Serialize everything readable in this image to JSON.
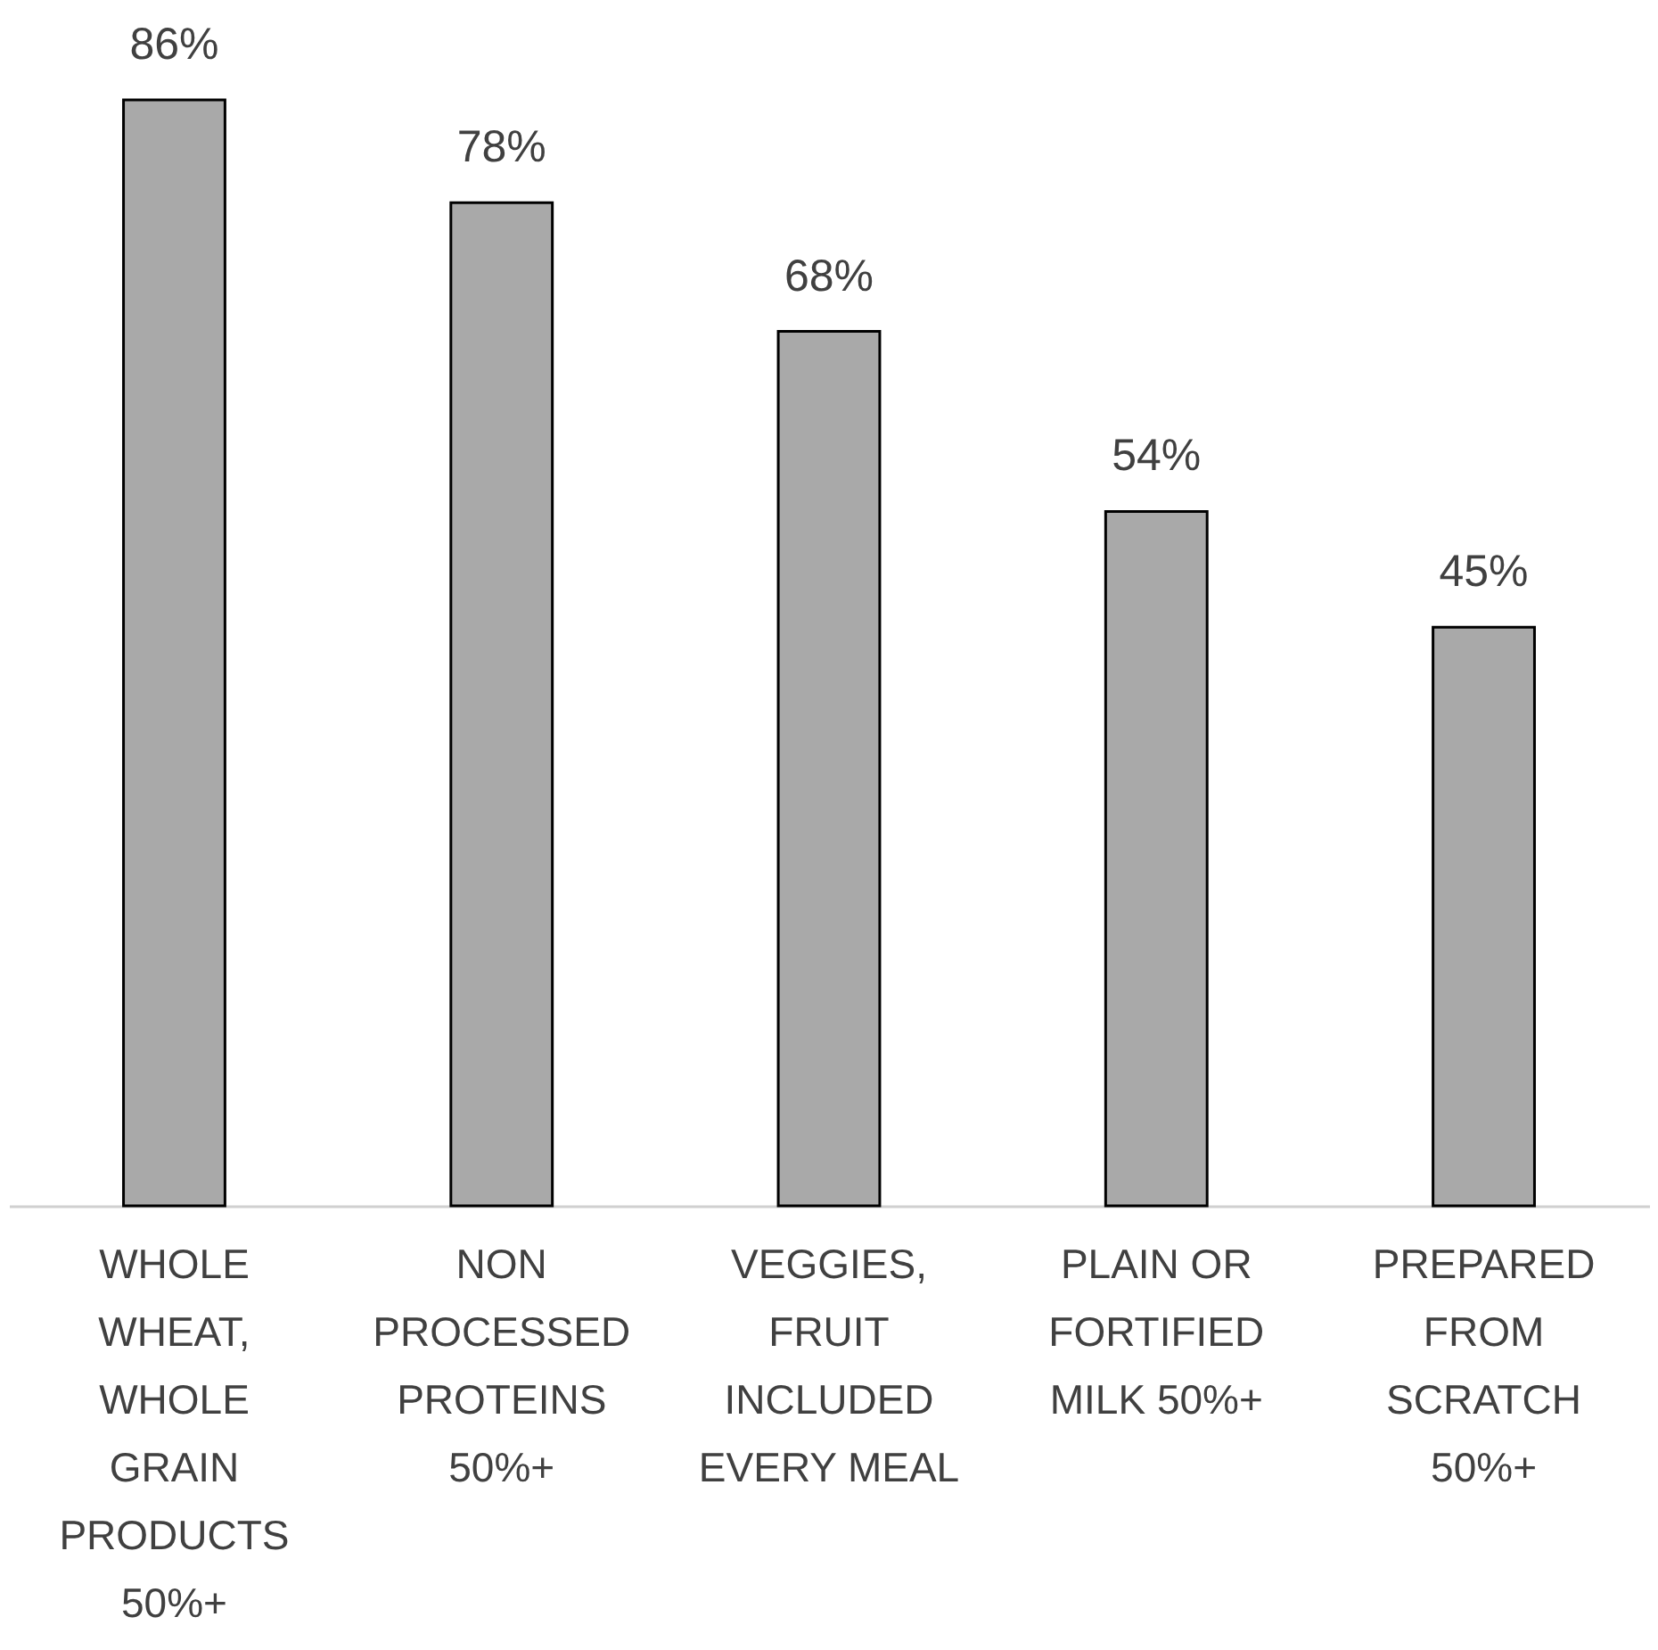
{
  "chart_data": {
    "type": "bar",
    "categories": [
      "WHOLE WHEAT, WHOLE GRAIN PRODUCTS 50%+",
      "NON PROCESSED PROTEINS 50%+",
      "VEGGIES, FRUIT INCLUDED EVERY MEAL",
      "PLAIN OR FORTIFIED MILK 50%+",
      "PREPARED FROM SCRATCH 50%+"
    ],
    "values": [
      86,
      78,
      68,
      54,
      45
    ],
    "color": "#a9a9a9",
    "value_labels": [
      "86%",
      "78%",
      "68%",
      "54%",
      "45%"
    ]
  }
}
